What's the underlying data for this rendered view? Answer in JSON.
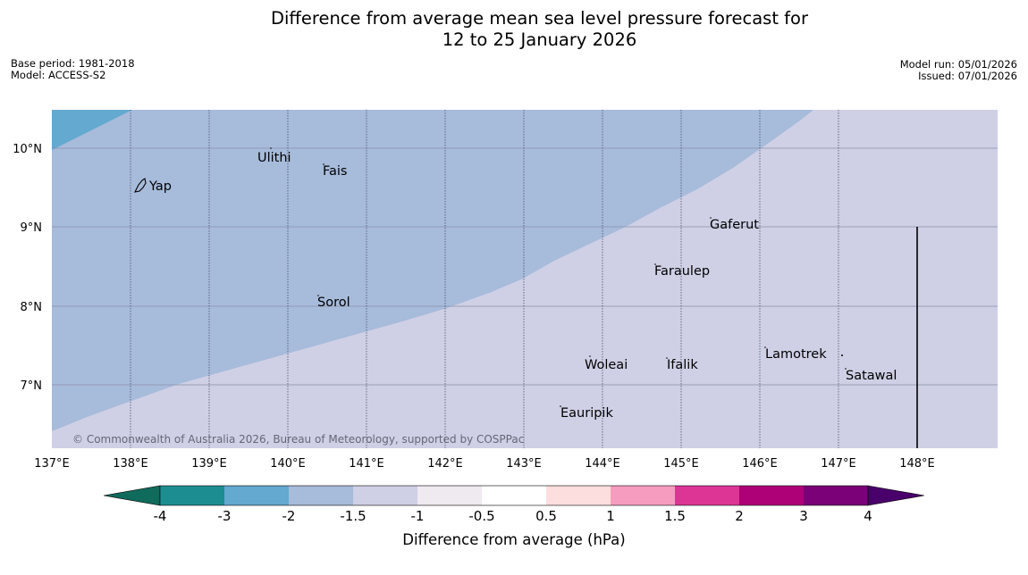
{
  "title": {
    "line1": "Difference from average mean sea level pressure forecast for",
    "line2": "12 to 25 January 2026"
  },
  "meta": {
    "base_period": "Base period: 1981-2018",
    "model": "Model: ACCESS-S2",
    "model_run": "Model run: 05/01/2026",
    "issued": "Issued: 07/01/2026"
  },
  "map": {
    "lon_labels": [
      "137°E",
      "138°E",
      "139°E",
      "140°E",
      "141°E",
      "142°E",
      "143°E",
      "144°E",
      "145°E",
      "146°E",
      "147°E",
      "148°E"
    ],
    "lat_labels": [
      "10°N",
      "9°N",
      "8°N",
      "7°N"
    ],
    "places": [
      {
        "name": "Ulithi"
      },
      {
        "name": "Fais"
      },
      {
        "name": "Yap"
      },
      {
        "name": "Gaferut"
      },
      {
        "name": "Faraulep"
      },
      {
        "name": "Sorol"
      },
      {
        "name": "Lamotrek"
      },
      {
        "name": "Woleai"
      },
      {
        "name": "Ifalik"
      },
      {
        "name": "Satawal"
      },
      {
        "name": "Eauripik"
      }
    ],
    "copyright": "© Commonwealth of Australia 2026, Bureau of Meteorology, supported by COSPPac",
    "colors": {
      "minus3_to_minus2": "#63a9d0",
      "minus2_to_minus1_5": "#a7bbdb",
      "minus1_5_to_minus1": "#cfd0e5"
    }
  },
  "colorbar": {
    "title": "Difference from average (hPa)",
    "ticks": [
      "-4",
      "-3",
      "-2",
      "-1.5",
      "-1",
      "-0.5",
      "0.5",
      "1",
      "1.5",
      "2",
      "3",
      "4"
    ],
    "colors": [
      "#0f6b5c",
      "#1c8e91",
      "#63a9d0",
      "#a7bbdb",
      "#cfd0e5",
      "#efe9f0",
      "#ffffff",
      "#fddede",
      "#f69dbf",
      "#dc3596",
      "#ae0177",
      "#7a0177",
      "#49006a"
    ]
  }
}
